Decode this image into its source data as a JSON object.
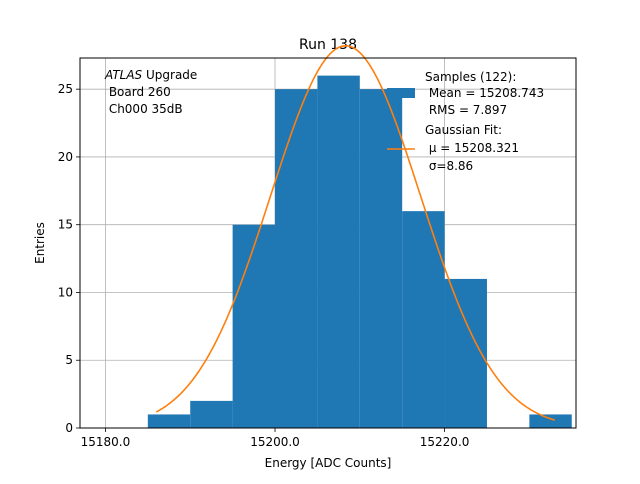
{
  "chart_data": {
    "type": "bar",
    "title": "Run 138",
    "xlabel": "Energy [ADC Counts]",
    "ylabel": "Entries",
    "xlim": [
      15177,
      15235.5
    ],
    "ylim": [
      0,
      27.3
    ],
    "grid": true,
    "xticks": [
      15180.0,
      15200.0,
      15220.0
    ],
    "xtick_labels": [
      "15180.0",
      "15200.0",
      "15220.0"
    ],
    "yticks": [
      0,
      5,
      10,
      15,
      20,
      25
    ],
    "ytick_labels": [
      "0",
      "5",
      "10",
      "15",
      "20",
      "25"
    ],
    "bin_edges": [
      15185,
      15190,
      15195,
      15200,
      15205,
      15210,
      15215,
      15220,
      15225,
      15230,
      15235
    ],
    "counts": [
      1,
      2,
      15,
      25,
      26,
      25,
      16,
      11,
      0,
      1
    ],
    "histogram_color": "#1f77b4",
    "fit": {
      "mu": 15208.321,
      "sigma": 8.86,
      "amplitude": 28.2,
      "x_range": [
        15186,
        15233
      ],
      "color": "#ff7f0e"
    },
    "legend": {
      "placement": "top-right",
      "entries": [
        {
          "label_lines": [
            "Samples (122):",
            " Mean = 15208.743",
            " RMS = 7.897"
          ]
        },
        {
          "label_lines": [
            "Gaussian Fit:",
            " μ = 15208.321",
            " σ=8.86"
          ]
        }
      ]
    },
    "annotation": {
      "italic": "ATLAS",
      "line1_rest": " Upgrade",
      "line2": " Board 260",
      "line3": " Ch000 35dB"
    }
  }
}
